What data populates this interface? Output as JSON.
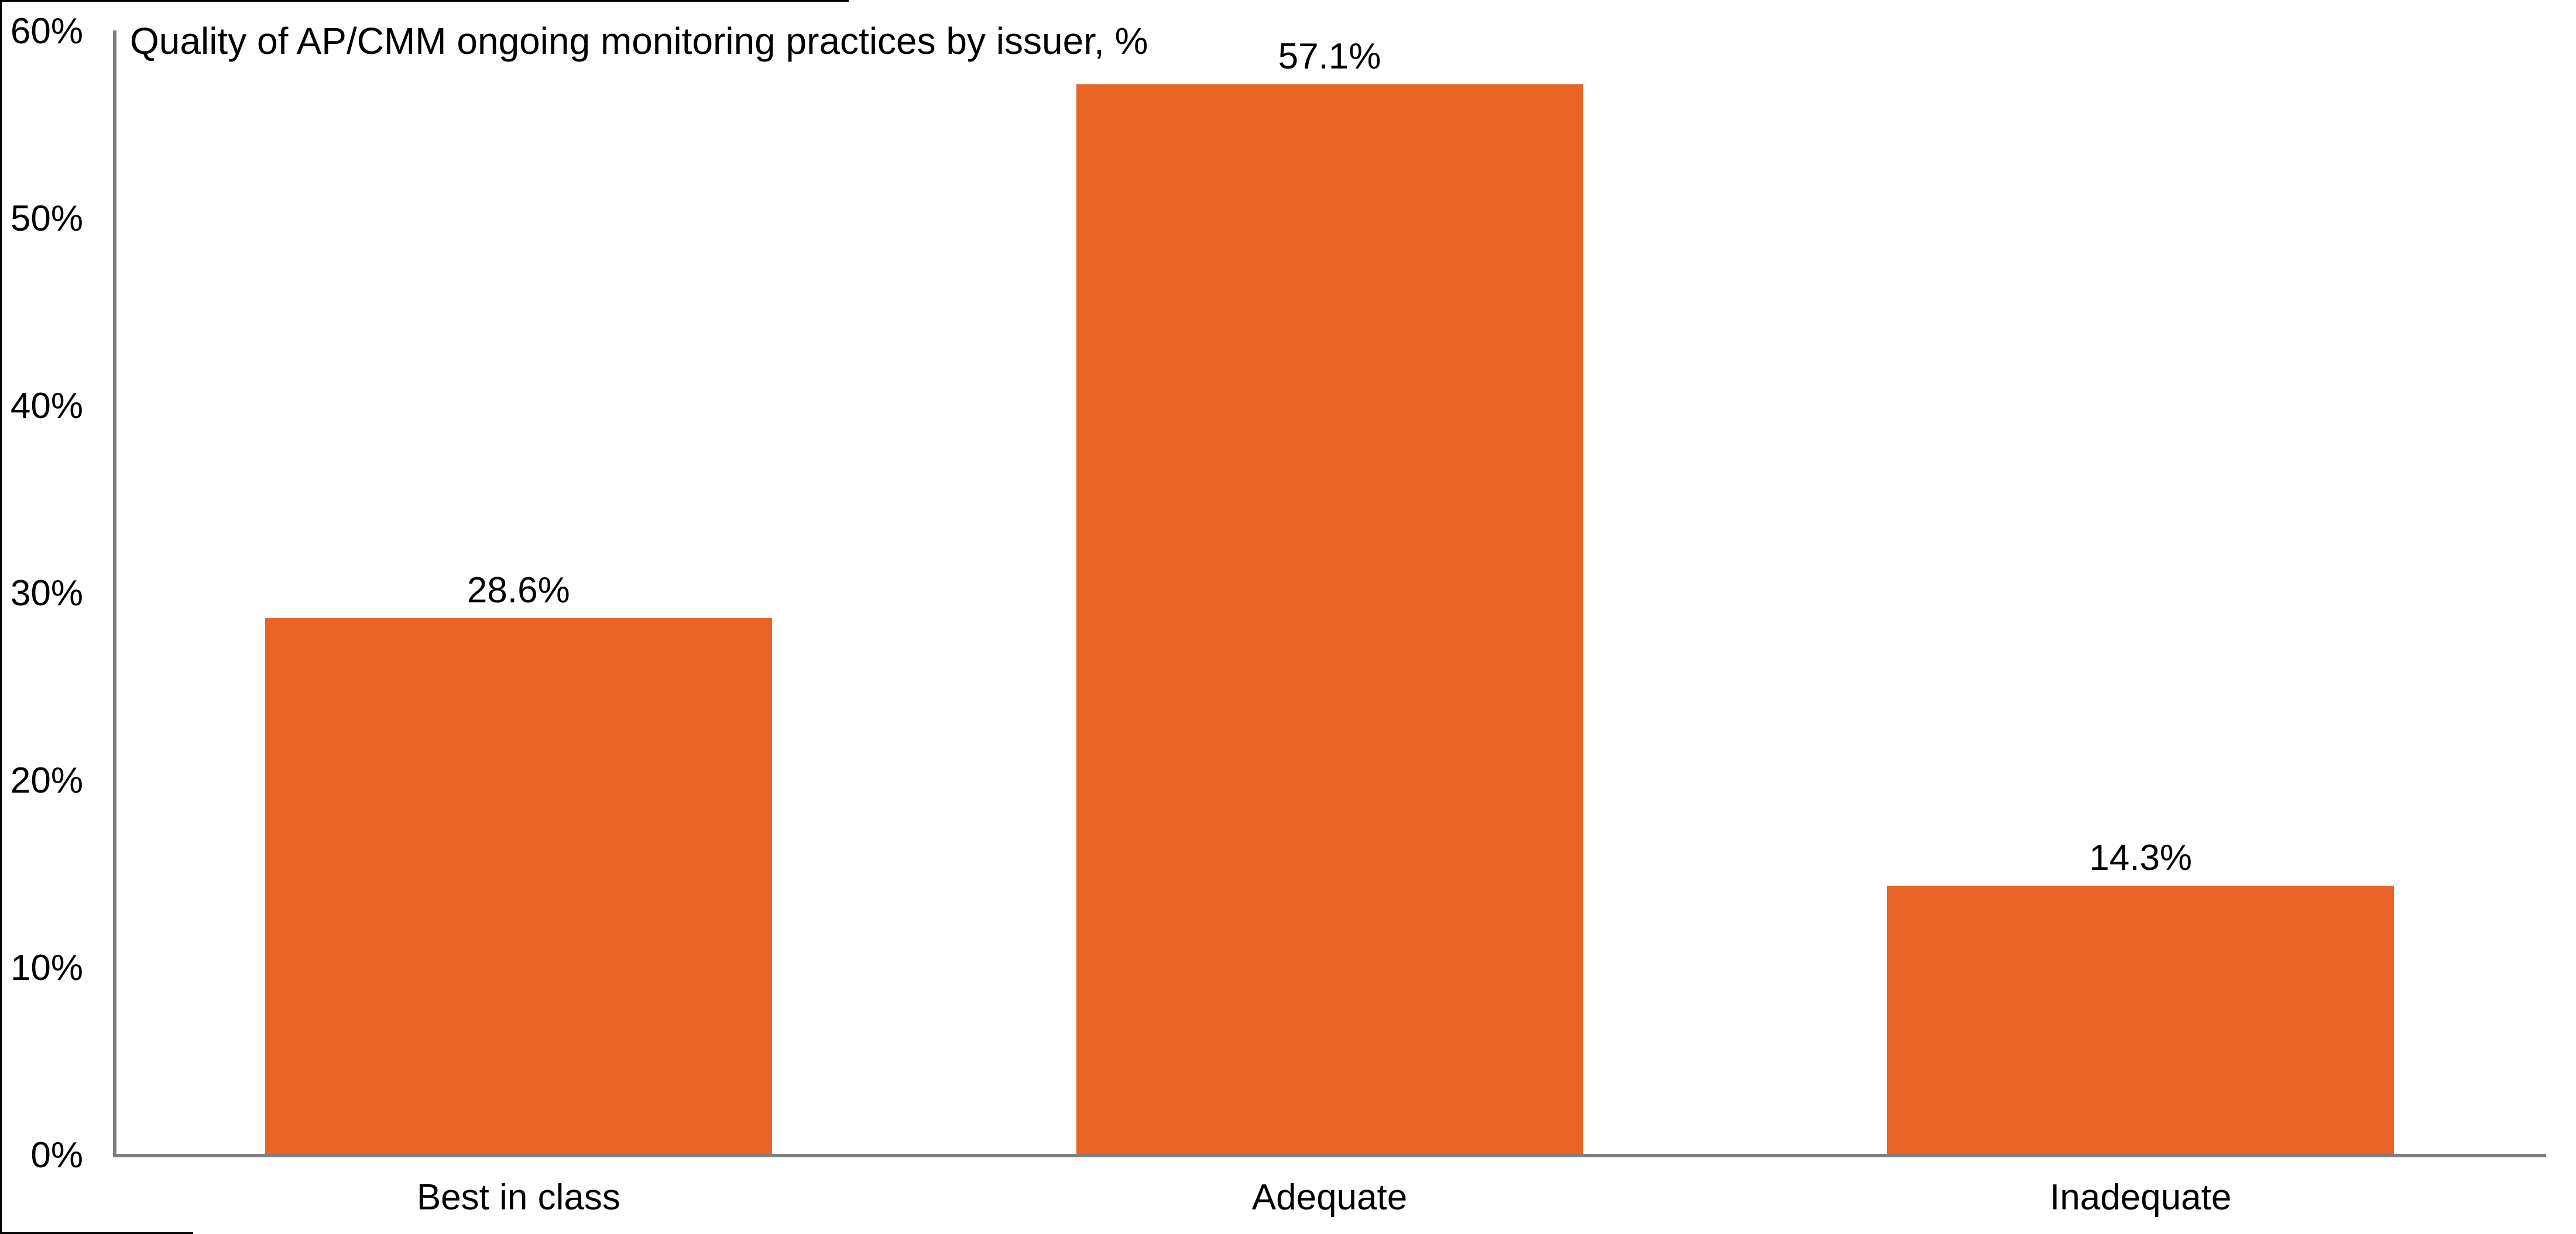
{
  "chart_data": {
    "type": "bar",
    "title": "Quality of AP/CMM ongoing monitoring practices by issuer, %",
    "categories": [
      "Best in class",
      "Adequate",
      "Inadequate"
    ],
    "values": [
      28.6,
      57.1,
      14.3
    ],
    "value_labels": [
      "28.6%",
      "57.1%",
      "14.3%"
    ],
    "xlabel": "",
    "ylabel": "",
    "ylim": [
      0,
      60
    ],
    "ytick_values": [
      0,
      10,
      20,
      30,
      40,
      50,
      60
    ],
    "ytick_labels": [
      "0%",
      "10%",
      "20%",
      "30%",
      "40%",
      "50%",
      "60%"
    ],
    "grid": false,
    "legend_position": "none",
    "bar_color": "#EA6426",
    "axis_color": "#7F7F7F",
    "text_color": "#000000",
    "background_color": "#FFFFFF"
  }
}
